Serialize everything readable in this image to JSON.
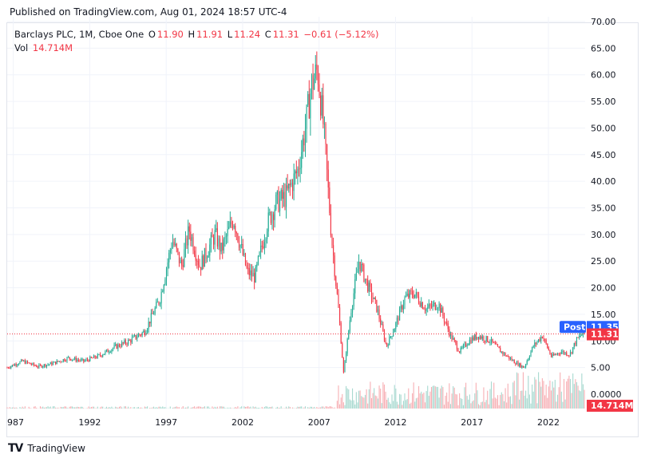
{
  "published": "Published on TradingView.com, Aug 01, 2024 18:57 UTC-4",
  "legend": {
    "title": "Barclays PLC, 1M, Cboe One",
    "o_label": "O",
    "o_value": "11.90",
    "h_label": "H",
    "h_value": "11.91",
    "l_label": "L",
    "l_value": "11.24",
    "c_label": "C",
    "c_value": "11.31",
    "change": "−0.61 (−5.12%)",
    "vol_label": "Vol",
    "vol_value": "14.714M"
  },
  "footer": {
    "brand": "TradingView",
    "logo": "TV"
  },
  "colors": {
    "up": "#22ab94",
    "down": "#f23645",
    "post": "#2962ff",
    "vol_up": "#a8d9d0",
    "vol_down": "#f7b0b5"
  },
  "chart_data": {
    "type": "candlestick",
    "symbol": "Barclays PLC",
    "interval": "1M",
    "exchange": "Cboe One",
    "y_ticks": [
      "70.00",
      "65.00",
      "60.00",
      "55.00",
      "50.00",
      "45.00",
      "40.00",
      "35.00",
      "30.00",
      "25.00",
      "20.00",
      "15.00",
      "10.00",
      "5.00"
    ],
    "ylim": [
      0,
      70
    ],
    "x_ticks": [
      "987",
      "1992",
      "1997",
      "2002",
      "2007",
      "2012",
      "2017",
      "2022"
    ],
    "xlim": [
      1987.0,
      2024.8
    ],
    "volume_tick": "0.0000",
    "last_price": 11.31,
    "last_price_label": "11.31",
    "post_label": "Post",
    "post_price": 11.35,
    "post_price_label": "11.35",
    "volume_label": "14.714M",
    "price_path": [
      [
        1987.0,
        5.0
      ],
      [
        1988.0,
        6.2
      ],
      [
        1989.0,
        5.2
      ],
      [
        1990.0,
        5.8
      ],
      [
        1991.0,
        6.8
      ],
      [
        1992.0,
        6.2
      ],
      [
        1993.0,
        7.2
      ],
      [
        1994.0,
        8.8
      ],
      [
        1995.0,
        10.0
      ],
      [
        1996.0,
        11.8
      ],
      [
        1997.0,
        18.0
      ],
      [
        1997.8,
        29.0
      ],
      [
        1998.4,
        24.0
      ],
      [
        1998.9,
        31.0
      ],
      [
        1999.6,
        24.0
      ],
      [
        2000.6,
        30.0
      ],
      [
        2001.0,
        27.0
      ],
      [
        2001.8,
        33.0
      ],
      [
        2002.7,
        23.0
      ],
      [
        2003.2,
        22.0
      ],
      [
        2004.0,
        32.0
      ],
      [
        2004.6,
        36.0
      ],
      [
        2005.2,
        37.0
      ],
      [
        2006.0,
        42.0
      ],
      [
        2006.5,
        50.0
      ],
      [
        2006.9,
        58.0
      ],
      [
        2007.3,
        61.0
      ],
      [
        2007.7,
        50.0
      ],
      [
        2008.2,
        30.0
      ],
      [
        2008.7,
        15.0
      ],
      [
        2009.0,
        4.0
      ],
      [
        2009.5,
        16.0
      ],
      [
        2010.0,
        25.0
      ],
      [
        2010.5,
        21.0
      ],
      [
        2011.2,
        16.0
      ],
      [
        2011.8,
        9.0
      ],
      [
        2012.4,
        13.0
      ],
      [
        2013.0,
        18.0
      ],
      [
        2013.6,
        19.0
      ],
      [
        2014.4,
        16.0
      ],
      [
        2015.2,
        17.0
      ],
      [
        2016.0,
        11.0
      ],
      [
        2016.6,
        8.0
      ],
      [
        2017.2,
        10.0
      ],
      [
        2017.8,
        11.0
      ],
      [
        2018.6,
        10.0
      ],
      [
        2019.3,
        8.0
      ],
      [
        2020.2,
        6.0
      ],
      [
        2020.8,
        5.0
      ],
      [
        2021.4,
        9.0
      ],
      [
        2022.0,
        11.0
      ],
      [
        2022.6,
        7.0
      ],
      [
        2023.2,
        8.0
      ],
      [
        2023.8,
        7.5
      ],
      [
        2024.2,
        10.0
      ],
      [
        2024.6,
        11.31
      ]
    ]
  }
}
